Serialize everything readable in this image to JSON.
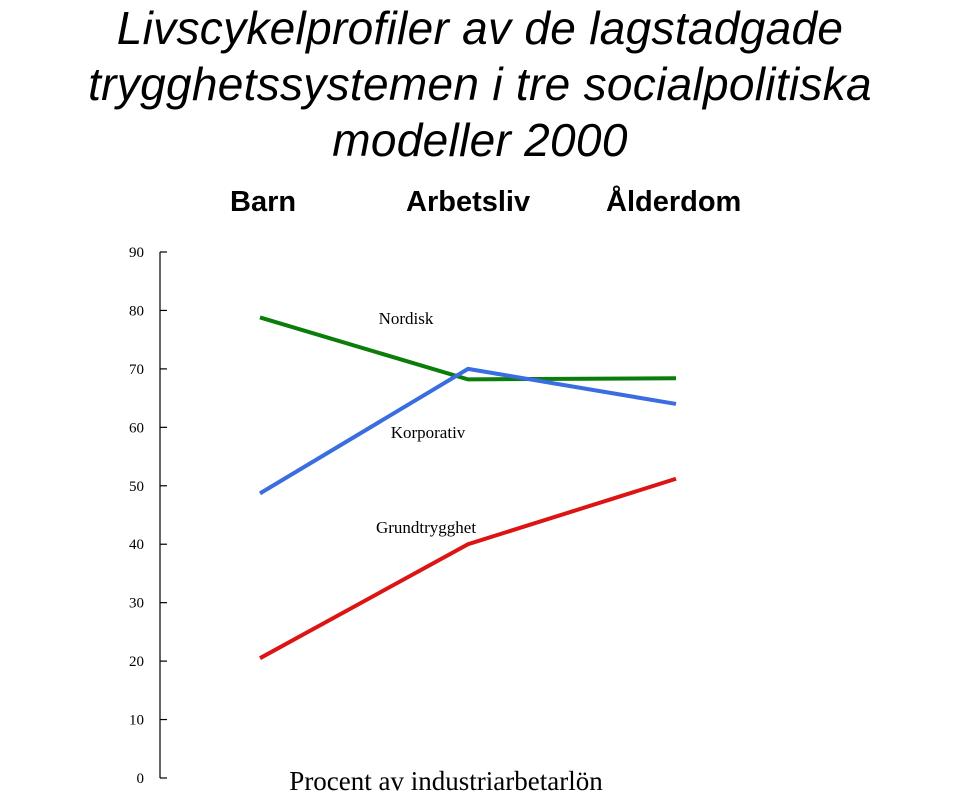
{
  "chart_data": {
    "type": "line",
    "title_lines": [
      "Livscykelprofiler av de lagstadgade",
      "trygghetssystemen i tre socialpolitiska",
      "modeller 2000"
    ],
    "categories": [
      "Barn",
      "Arbetsliv",
      "Ålderdom"
    ],
    "yticks": [
      "0",
      "10",
      "20",
      "30",
      "40",
      "50",
      "60",
      "70",
      "80",
      "90"
    ],
    "ylim": [
      0,
      90
    ],
    "grid": false,
    "unit_label": "Procent av industriarbetarlön",
    "series": [
      {
        "name": "Nordisk",
        "color": "#0a7d0a",
        "values": [
          78.8,
          68.2,
          68.4
        ]
      },
      {
        "name": "Korporativ",
        "color": "#3a6de0",
        "values": [
          48.7,
          70.0,
          64.0
        ]
      },
      {
        "name": "Grundtrygghet",
        "color": "#dc1414",
        "values": [
          20.5,
          40.0,
          51.2
        ]
      }
    ]
  }
}
